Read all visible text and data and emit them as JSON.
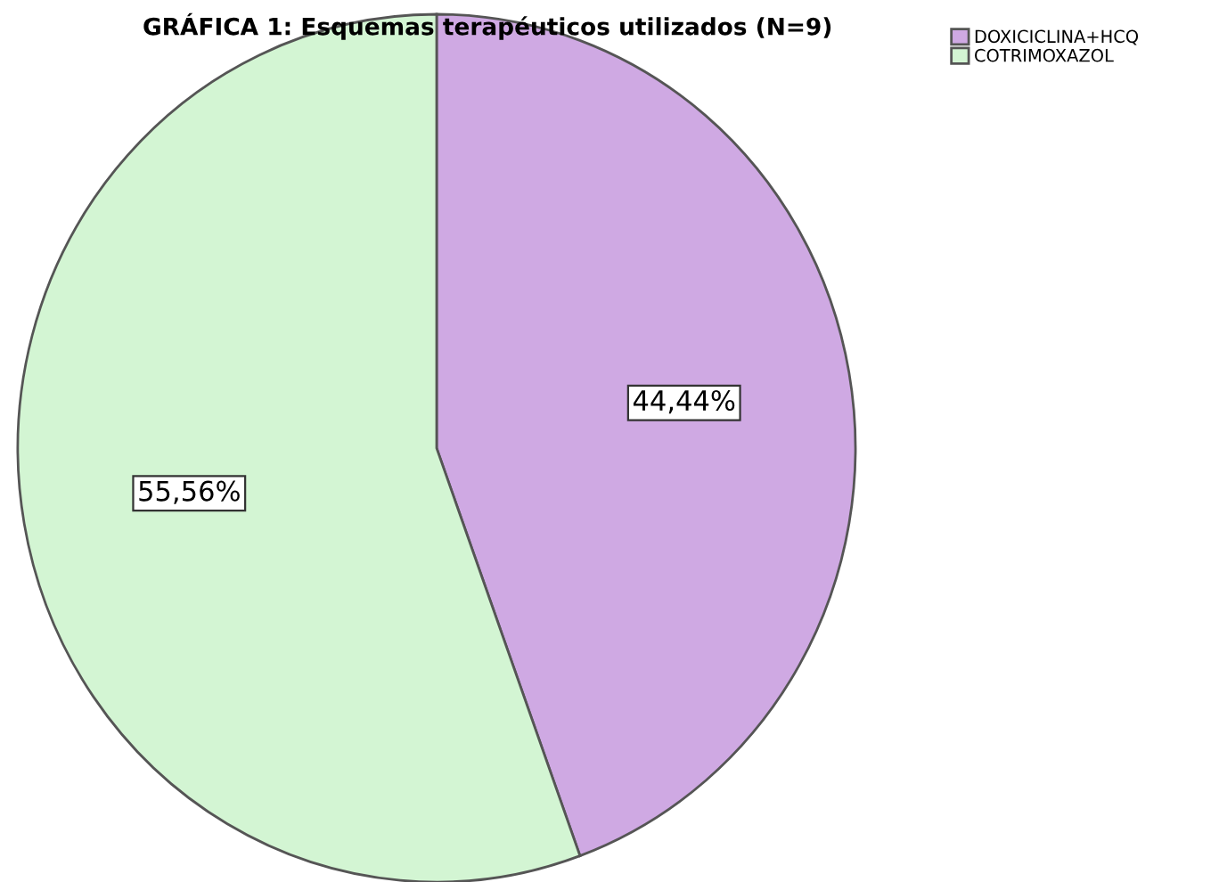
{
  "chart_data": {
    "type": "pie",
    "title": "GRÁFICA 1: Esquemas terapéuticos utilizados (N=9)",
    "categories": [
      "DOXICICLINA+HCQ",
      "COTRIMOXAZOL"
    ],
    "values": [
      44.44,
      55.56
    ],
    "colors": [
      "#cfa9e3",
      "#d3f5d3"
    ],
    "value_labels": [
      "44,44%",
      "55,56%"
    ],
    "legend": "top right"
  }
}
